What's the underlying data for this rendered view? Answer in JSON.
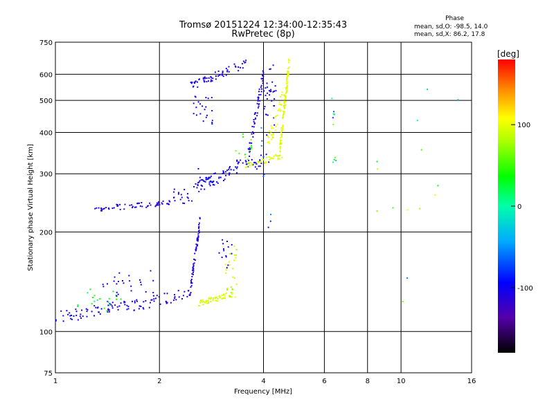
{
  "chart_data": {
    "type": "scatter",
    "title": "Tromsø 20151224 12:34:00-12:35:43",
    "subtitle": "RwPretec (8p)",
    "xlabel": "Frequency [MHz]",
    "ylabel": "Stationary phase Virtual Height [km]",
    "x_scale": "log",
    "y_scale": "log",
    "xlim": [
      1,
      16
    ],
    "ylim": [
      75,
      750
    ],
    "x_ticks": [
      1,
      2,
      4,
      6,
      8,
      10,
      16
    ],
    "x_tick_labels": [
      "1",
      "2",
      "4",
      "6",
      "8",
      "10",
      "16"
    ],
    "y_ticks": [
      75,
      100,
      200,
      300,
      400,
      500,
      600,
      750
    ],
    "y_tick_labels": [
      "75",
      "100",
      "200",
      "300",
      "400",
      "500",
      "600",
      "750"
    ],
    "grid": true,
    "colorbar": {
      "label": "[deg]",
      "range": [
        -180,
        180
      ],
      "ticks": [
        -100,
        0,
        100
      ],
      "tick_labels": [
        "-100",
        "0",
        "100"
      ]
    },
    "phase_stats": {
      "heading": "Phase",
      "o_mode": "mean, sd,O: -98.5, 14.0",
      "x_mode": "mean, sd,X: 86.2, 17.8"
    },
    "series": [
      {
        "segments": [
          {
            "f0": 1.0,
            "f1": 1.55,
            "h0": 110,
            "h1": 120,
            "n": 55,
            "spread": 0.045,
            "p": -105,
            "ps": 18,
            "tail": 0
          },
          {
            "f0": 1.15,
            "f1": 1.55,
            "h0": 118,
            "h1": 128,
            "n": 20,
            "spread": 0.06,
            "p": 30,
            "ps": 25,
            "tail": 0
          },
          {
            "f0": 1.55,
            "f1": 2.45,
            "h0": 118,
            "h1": 130,
            "n": 55,
            "spread": 0.04,
            "p": -108,
            "ps": 12,
            "tail": 0
          },
          {
            "f0": 1.3,
            "f1": 1.95,
            "h0": 130,
            "h1": 145,
            "n": 25,
            "spread": 0.06,
            "p": -100,
            "ps": 15,
            "tail": 0
          },
          {
            "f0": 2.45,
            "f1": 2.62,
            "h0": 130,
            "h1": 215,
            "n": 60,
            "spread": 0.04,
            "p": -112,
            "ps": 12,
            "tail": 0
          },
          {
            "f0": 2.6,
            "f1": 3.3,
            "h0": 122,
            "h1": 130,
            "n": 55,
            "spread": 0.02,
            "p": 95,
            "ps": 10,
            "tail": 0
          },
          {
            "f0": 3.1,
            "f1": 3.35,
            "h0": 130,
            "h1": 178,
            "n": 25,
            "spread": 0.03,
            "p": 90,
            "ps": 25,
            "tail": 0
          },
          {
            "f0": 2.9,
            "f1": 3.3,
            "h0": 155,
            "h1": 198,
            "n": 14,
            "spread": 0.03,
            "p": -110,
            "ps": 12,
            "tail": 0
          },
          {
            "f0": 1.3,
            "f1": 2.2,
            "h0": 235,
            "h1": 245,
            "n": 60,
            "spread": 0.02,
            "p": -110,
            "ps": 10,
            "tail": 0
          },
          {
            "f0": 2.2,
            "f1": 2.5,
            "h0": 245,
            "h1": 268,
            "n": 18,
            "spread": 0.02,
            "p": -110,
            "ps": 10,
            "tail": 0
          },
          {
            "f0": 2.5,
            "f1": 3.35,
            "h0": 270,
            "h1": 310,
            "n": 60,
            "spread": 0.04,
            "p": -100,
            "ps": 15,
            "tail": 0
          },
          {
            "f0": 3.35,
            "f1": 4.0,
            "h0": 315,
            "h1": 335,
            "n": 30,
            "spread": 0.03,
            "p": -108,
            "ps": 10,
            "tail": 0
          },
          {
            "f0": 3.6,
            "f1": 4.0,
            "h0": 335,
            "h1": 600,
            "n": 60,
            "spread": 0.05,
            "p": -110,
            "ps": 10,
            "tail": 0
          },
          {
            "f0": 4.0,
            "f1": 4.35,
            "h0": 440,
            "h1": 620,
            "n": 30,
            "spread": 0.06,
            "p": -112,
            "ps": 10,
            "tail": 0
          },
          {
            "f0": 3.55,
            "f1": 4.55,
            "h0": 318,
            "h1": 340,
            "n": 35,
            "spread": 0.02,
            "p": 95,
            "ps": 10,
            "tail": 0
          },
          {
            "f0": 4.45,
            "f1": 4.75,
            "h0": 345,
            "h1": 660,
            "n": 110,
            "spread": 0.05,
            "p": 98,
            "ps": 10,
            "tail": 0
          },
          {
            "f0": 4.1,
            "f1": 4.6,
            "h0": 360,
            "h1": 520,
            "n": 40,
            "spread": 0.07,
            "p": 100,
            "ps": 10,
            "tail": 0
          },
          {
            "f0": 3.3,
            "f1": 3.7,
            "h0": 330,
            "h1": 380,
            "n": 14,
            "spread": 0.05,
            "p": 50,
            "ps": 35,
            "tail": 0
          },
          {
            "f0": 2.45,
            "f1": 3.6,
            "h0": 550,
            "h1": 650,
            "n": 60,
            "spread": 0.03,
            "p": -110,
            "ps": 10,
            "tail": 0
          },
          {
            "f0": 2.5,
            "f1": 2.85,
            "h0": 440,
            "h1": 500,
            "n": 22,
            "spread": 0.05,
            "p": -100,
            "ps": 15,
            "tail": 0
          },
          {
            "f0": 2.5,
            "f1": 3.0,
            "h0": 290,
            "h1": 300,
            "n": 8,
            "spread": 0.05,
            "p": -100,
            "ps": 15,
            "tail": 0
          },
          {
            "f0": 3.9,
            "f1": 4.2,
            "h0": 180,
            "h1": 560,
            "n": 14,
            "spread": 0.08,
            "p": -80,
            "ps": 40,
            "tail": 0
          },
          {
            "f0": 6.3,
            "f1": 6.5,
            "h0": 330,
            "h1": 620,
            "n": 10,
            "spread": 0.06,
            "p": 20,
            "ps": 100,
            "tail": 0
          },
          {
            "f0": 8.0,
            "f1": 16.0,
            "h0": 110,
            "h1": 600,
            "n": 14,
            "spread": 0.1,
            "p": 0,
            "ps": 110,
            "tail": 0
          }
        ]
      }
    ]
  }
}
